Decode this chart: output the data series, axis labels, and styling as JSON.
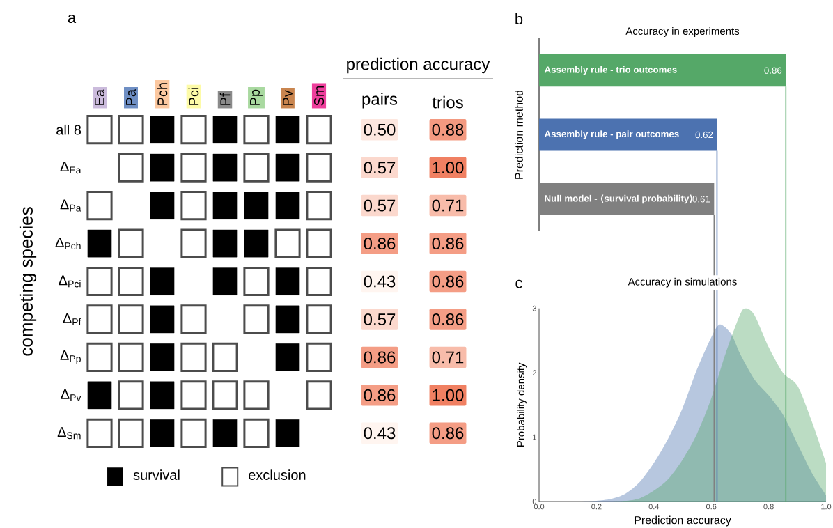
{
  "chart_data": [
    {
      "type": "heatmap",
      "ylabel": "competing species",
      "categories": [
        "Ea",
        "Pa",
        "Pch",
        "Pci",
        "Pf",
        "Pp",
        "Pv",
        "Sm"
      ],
      "colors": [
        "#cbbbdc",
        "#6f8fc4",
        "#fcc8a0",
        "#fdfba8",
        "#8a8a8a",
        "#a9d9a0",
        "#c9854f",
        "#ee3f9c"
      ],
      "y_categories": [
        "all 8",
        "Δ$_{Ea}$",
        "Δ$_{Pa}$",
        "Δ$_{Pch}$",
        "Δ$_{Pci}$",
        "Δ$_{Pf}$",
        "Δ$_{Pp}$",
        "Δ$_{Pv}$",
        "Δ$_{Sm}$"
      ],
      "cells": [
        [
          false,
          false,
          true,
          false,
          true,
          false,
          true,
          false
        ],
        [
          null,
          false,
          true,
          false,
          true,
          false,
          true,
          false
        ],
        [
          false,
          null,
          true,
          false,
          true,
          true,
          true,
          false
        ],
        [
          true,
          false,
          null,
          false,
          true,
          true,
          false,
          false
        ],
        [
          false,
          false,
          true,
          null,
          true,
          false,
          true,
          false
        ],
        [
          false,
          false,
          true,
          false,
          null,
          false,
          true,
          false
        ],
        [
          false,
          false,
          true,
          false,
          false,
          null,
          true,
          false
        ],
        [
          true,
          false,
          true,
          false,
          false,
          false,
          null,
          false
        ],
        [
          false,
          false,
          true,
          false,
          true,
          false,
          true,
          null
        ]
      ],
      "annotations": [
        "a",
        "survival",
        "exclusion"
      ]
    },
    {
      "type": "heatmap",
      "title": "prediction accuracy",
      "categories": [
        "pairs",
        "trios"
      ],
      "y_categories": [
        null,
        null,
        null,
        null,
        null,
        null,
        null,
        null,
        null
      ],
      "cells": [
        [
          0.5,
          0.88
        ],
        [
          0.57,
          1.0
        ],
        [
          0.57,
          0.71
        ],
        [
          0.86,
          0.86
        ],
        [
          0.43,
          0.86
        ],
        [
          0.57,
          0.86
        ],
        [
          0.86,
          0.71
        ],
        [
          0.86,
          1.0
        ],
        [
          0.43,
          0.86
        ]
      ],
      "cell_labels": [
        [
          "0.50",
          "0.88"
        ],
        [
          "0.57",
          "1.00"
        ],
        [
          "0.57",
          "0.71"
        ],
        [
          "0.86",
          "0.86"
        ],
        [
          "0.43",
          "0.86"
        ],
        [
          "0.57",
          "0.86"
        ],
        [
          "0.86",
          "0.71"
        ],
        [
          "0.86",
          "1.00"
        ],
        [
          "0.43",
          "0.86"
        ]
      ]
    },
    {
      "type": "bar",
      "orientation": "horizontal",
      "title": "Accuracy in experiments",
      "ylabel": "Prediction method",
      "categories": [
        "Assembly rule - trio outcomes",
        "Assembly rule - pair outcomes",
        "Null model - ⟨survival probability⟩"
      ],
      "values": [
        0.86,
        0.62,
        0.61
      ],
      "colors": [
        "#55a868",
        "#4c72b0",
        "#808080"
      ],
      "xlim": [
        0,
        1
      ],
      "data_labels": true,
      "annotations": [
        "b"
      ]
    },
    {
      "type": "area",
      "title": "Accuracy in simulations",
      "xlabel": "Prediction accuracy",
      "ylabel": "Probability density",
      "xlim": [
        0,
        1
      ],
      "ylim": [
        0,
        3
      ],
      "xticks": [
        {
          "value": 0,
          "label": "0.0"
        },
        {
          "value": 0.2,
          "label": "0.2"
        },
        {
          "value": 0.4,
          "label": "0.4"
        },
        {
          "value": 0.6,
          "label": "0.6"
        },
        {
          "value": 0.8,
          "label": "0.8"
        },
        {
          "value": 1,
          "label": "1.0"
        }
      ],
      "yticks": [
        0,
        1,
        2,
        3
      ],
      "series": [
        {
          "color": "#4c72b0",
          "x": [
            0,
            0.15,
            0.2,
            0.25,
            0.3,
            0.35,
            0.4,
            0.45,
            0.5,
            0.55,
            0.6,
            0.63,
            0.67,
            0.7,
            0.75,
            0.8,
            0.85,
            0.9,
            0.95,
            1.0
          ],
          "values": [
            0,
            0,
            0.01,
            0.04,
            0.12,
            0.3,
            0.6,
            0.98,
            1.45,
            2.05,
            2.55,
            2.75,
            2.6,
            2.3,
            1.9,
            1.65,
            1.35,
            0.9,
            0.45,
            0.1
          ]
        },
        {
          "color": "#55a868",
          "x": [
            0,
            0.25,
            0.3,
            0.35,
            0.4,
            0.45,
            0.5,
            0.55,
            0.6,
            0.65,
            0.7,
            0.72,
            0.75,
            0.8,
            0.85,
            0.9,
            0.95,
            1.0
          ],
          "values": [
            0,
            0,
            0.01,
            0.05,
            0.17,
            0.35,
            0.65,
            1.05,
            1.6,
            2.3,
            2.9,
            3.0,
            2.9,
            2.4,
            2.0,
            1.8,
            1.25,
            0.6
          ]
        }
      ],
      "ref_lines": [
        {
          "axis": "x",
          "value": 0.86,
          "color": "#55a868"
        },
        {
          "axis": "x",
          "value": 0.62,
          "color": "#4c72b0"
        },
        {
          "axis": "x",
          "value": 0.61,
          "color": "#808080"
        }
      ],
      "annotations": [
        "c"
      ]
    }
  ]
}
